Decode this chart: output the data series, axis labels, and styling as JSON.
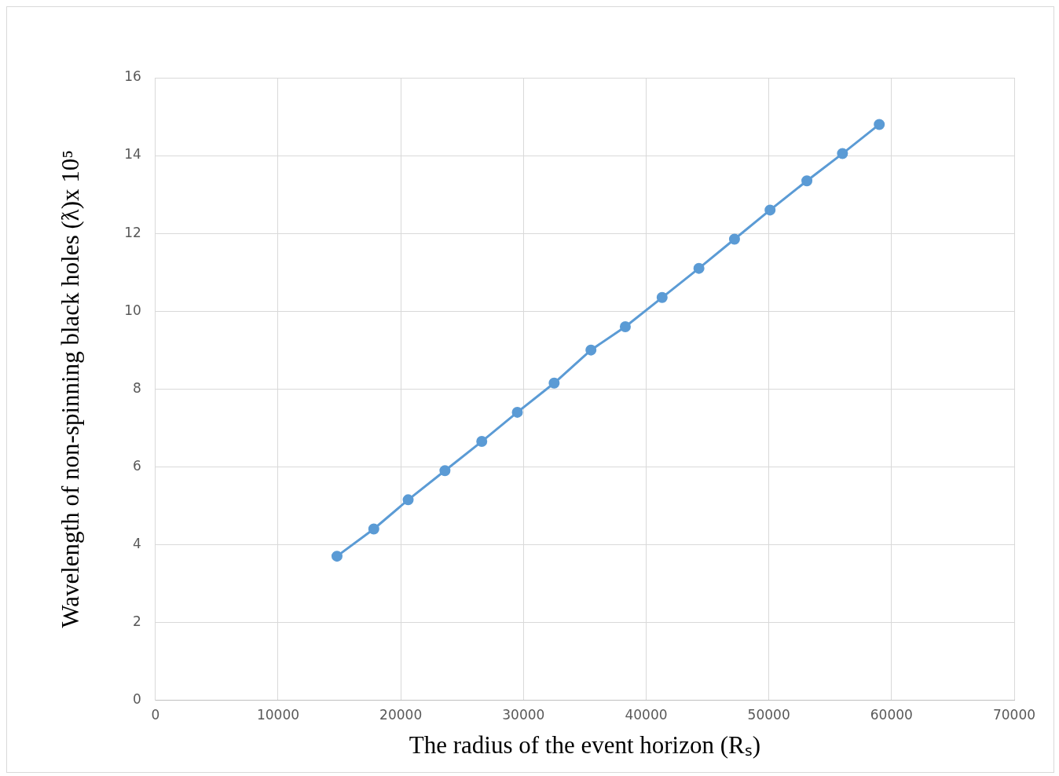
{
  "chart_data": {
    "type": "line",
    "xlabel": "The radius of the event horizon (Rₛ)",
    "ylabel": "Wavelength of non-spinning black holes (ƛ)x 10⁵",
    "x": [
      14800,
      17800,
      20600,
      23600,
      26600,
      29500,
      32500,
      35500,
      38300,
      41300,
      44300,
      47200,
      50100,
      53100,
      56000,
      59000
    ],
    "series": [
      {
        "color": "#5b9bd5",
        "values": [
          3.7,
          4.4,
          5.15,
          5.9,
          6.65,
          7.4,
          8.15,
          9.0,
          9.6,
          10.35,
          11.1,
          11.85,
          12.6,
          13.35,
          14.05,
          14.8
        ]
      }
    ],
    "xlim": [
      0,
      70000
    ],
    "xticks": [
      0,
      10000,
      20000,
      30000,
      40000,
      50000,
      60000,
      70000
    ],
    "ylim": [
      0,
      16
    ],
    "yticks": [
      0,
      2,
      4,
      6,
      8,
      10,
      12,
      14,
      16
    ],
    "grid": true,
    "legend": false,
    "marker": "circle",
    "line_style": "solid"
  }
}
